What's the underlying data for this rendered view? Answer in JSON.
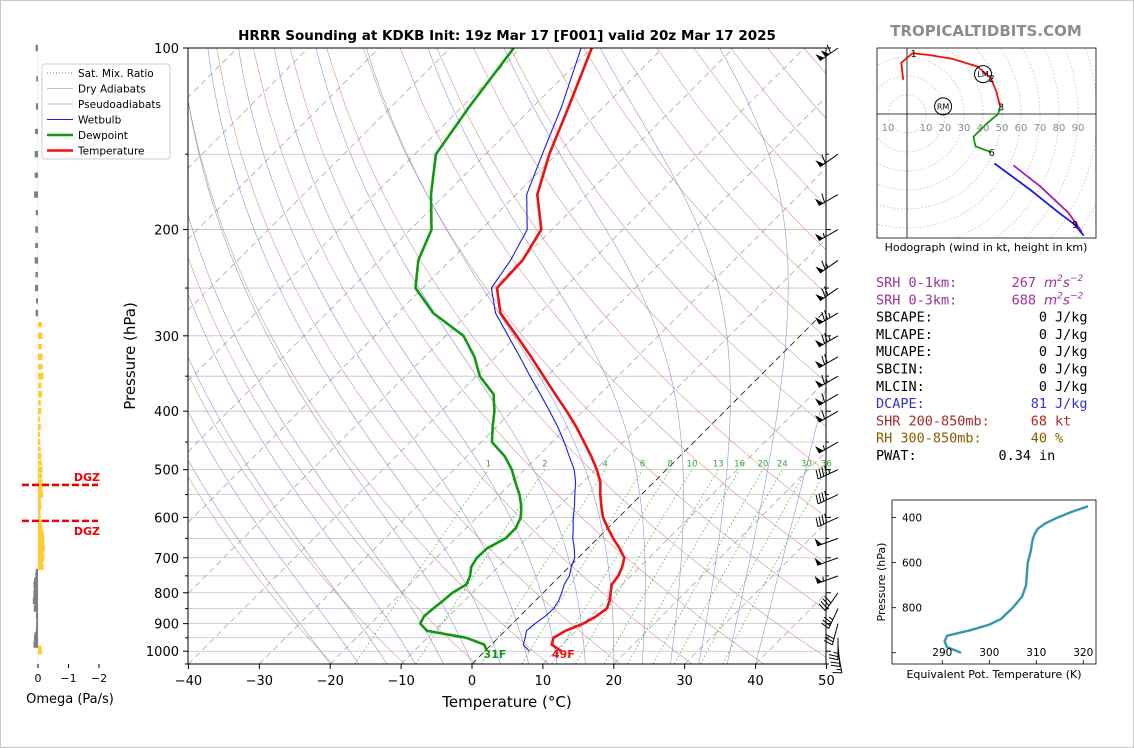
{
  "title": "HRRR Sounding at KDKB Init: 19z Mar 17 [F001] valid 20z Mar 17 2025",
  "brand": "TROPICALTIDBITS.COM",
  "colors": {
    "temperature": "#ee1111",
    "dewpoint": "#119911",
    "wetbulb": "#1a1ae6",
    "dry_adiabat": "#d08080",
    "moist_adiabat": "#8080d0",
    "mixing_ratio": "#33aa33",
    "srh": "#993399",
    "dcape": "#3333cc",
    "shr": "#a52a2a",
    "rh": "#8b5a00",
    "omega_up": "#ffcc33",
    "omega_down": "#808080",
    "dgz": "#ee0000",
    "theta_e": "#3399aa"
  },
  "chart_data": [
    {
      "type": "line",
      "name": "skewt",
      "xlabel": "Temperature (°C)",
      "ylabel": "Pressure (hPa)",
      "xlim": [
        -40,
        50
      ],
      "ylim": [
        1050,
        100
      ],
      "y_scale": "log",
      "skew": "45°",
      "x_ticks": [
        "−40",
        "−30",
        "−20",
        "−10",
        "0",
        "10",
        "20",
        "30",
        "40",
        "50"
      ],
      "y_ticks": [
        "100",
        "200",
        "300",
        "400",
        "500",
        "600",
        "700",
        "800",
        "900",
        "1000"
      ],
      "legend": {
        "placement": "top-left",
        "entries": [
          "Sat. Mix. Ratio",
          "Dry Adiabats",
          "Pseudoadiabats",
          "Wetbulb",
          "Dewpoint",
          "Temperature"
        ]
      },
      "series": [
        {
          "name": "Temperature",
          "points": [
            [
              1000,
              10.8
            ],
            [
              975,
              8.5
            ],
            [
              950,
              7.8
            ],
            [
              925,
              8.5
            ],
            [
              900,
              10.0
            ],
            [
              875,
              10.8
            ],
            [
              850,
              11.2
            ],
            [
              825,
              10.5
            ],
            [
              800,
              9.5
            ],
            [
              775,
              8.5
            ],
            [
              750,
              8.2
            ],
            [
              725,
              7.5
            ],
            [
              700,
              6.5
            ],
            [
              675,
              4.5
            ],
            [
              650,
              2.2
            ],
            [
              625,
              0.0
            ],
            [
              600,
              -2.2
            ],
            [
              575,
              -4.0
            ],
            [
              550,
              -5.8
            ],
            [
              525,
              -7.5
            ],
            [
              500,
              -9.8
            ],
            [
              475,
              -12.5
            ],
            [
              450,
              -15.5
            ],
            [
              425,
              -18.7
            ],
            [
              400,
              -22.3
            ],
            [
              375,
              -26.3
            ],
            [
              350,
              -30.5
            ],
            [
              325,
              -35.0
            ],
            [
              300,
              -40.0
            ],
            [
              275,
              -45.5
            ],
            [
              250,
              -49.5
            ],
            [
              225,
              -49.8
            ],
            [
              200,
              -51.5
            ],
            [
              175,
              -57.0
            ],
            [
              150,
              -61.0
            ],
            [
              125,
              -65.0
            ],
            [
              100,
              -70.0
            ]
          ]
        },
        {
          "name": "Dewpoint",
          "points": [
            [
              1000,
              0.3
            ],
            [
              975,
              -1.0
            ],
            [
              950,
              -4.5
            ],
            [
              925,
              -11.0
            ],
            [
              900,
              -13.0
            ],
            [
              875,
              -13.5
            ],
            [
              850,
              -13.3
            ],
            [
              825,
              -13.0
            ],
            [
              800,
              -12.8
            ],
            [
              775,
              -12.0
            ],
            [
              750,
              -12.7
            ],
            [
              725,
              -13.8
            ],
            [
              700,
              -14.3
            ],
            [
              675,
              -14.2
            ],
            [
              650,
              -13.0
            ],
            [
              625,
              -13.0
            ],
            [
              600,
              -13.8
            ],
            [
              575,
              -15.3
            ],
            [
              550,
              -17.2
            ],
            [
              525,
              -19.5
            ],
            [
              500,
              -21.8
            ],
            [
              475,
              -24.7
            ],
            [
              450,
              -28.5
            ],
            [
              425,
              -30.5
            ],
            [
              400,
              -32.5
            ],
            [
              375,
              -35.0
            ],
            [
              350,
              -39.5
            ],
            [
              325,
              -43.0
            ],
            [
              300,
              -47.5
            ],
            [
              275,
              -55.0
            ],
            [
              250,
              -61.0
            ],
            [
              225,
              -64.5
            ],
            [
              200,
              -67.0
            ],
            [
              175,
              -72.0
            ],
            [
              150,
              -77.0
            ],
            [
              125,
              -79.0
            ],
            [
              100,
              -81.0
            ]
          ]
        },
        {
          "name": "Wetbulb",
          "points": [
            [
              1000,
              6.3
            ],
            [
              975,
              4.5
            ],
            [
              950,
              3.8
            ],
            [
              925,
              3.0
            ],
            [
              900,
              3.2
            ],
            [
              875,
              3.6
            ],
            [
              850,
              3.7
            ],
            [
              825,
              3.3
            ],
            [
              800,
              2.6
            ],
            [
              775,
              1.8
            ],
            [
              750,
              1.3
            ],
            [
              725,
              0.3
            ],
            [
              700,
              -0.5
            ],
            [
              675,
              -1.9
            ],
            [
              650,
              -3.5
            ],
            [
              625,
              -4.9
            ],
            [
              600,
              -6.4
            ],
            [
              575,
              -7.8
            ],
            [
              550,
              -9.4
            ],
            [
              525,
              -11.0
            ],
            [
              500,
              -13.0
            ],
            [
              475,
              -15.6
            ],
            [
              450,
              -18.3
            ],
            [
              425,
              -21.3
            ],
            [
              400,
              -24.7
            ],
            [
              375,
              -28.4
            ],
            [
              350,
              -32.4
            ],
            [
              325,
              -36.6
            ],
            [
              300,
              -41.2
            ],
            [
              275,
              -46.2
            ],
            [
              250,
              -50.3
            ],
            [
              225,
              -51.5
            ],
            [
              200,
              -53.5
            ],
            [
              175,
              -58.5
            ],
            [
              150,
              -62.0
            ],
            [
              125,
              -66.0
            ],
            [
              100,
              -71.5
            ]
          ]
        }
      ],
      "annotations": {
        "surface_dewpoint": "31F",
        "surface_temperature": "49F"
      },
      "mixing_ratio_labels": [
        "1",
        "2",
        "4",
        "6",
        "8",
        "10",
        "13",
        "16",
        "20",
        "24",
        "30",
        "36"
      ]
    },
    {
      "type": "line",
      "name": "hodograph",
      "title": "Hodograph (wind in kt, height in km)",
      "rings": [
        "10",
        "20",
        "30",
        "40",
        "50",
        "60",
        "70",
        "80",
        "90"
      ],
      "x_tick_labels": [
        "10",
        "10",
        "20",
        "30",
        "40",
        "50",
        "60",
        "70",
        "80",
        "90"
      ],
      "storm_motion_labels": [
        "LM",
        "RM"
      ],
      "height_labels": [
        "1",
        "2",
        "3",
        "6",
        "9"
      ],
      "points": [
        {
          "u": -2,
          "v": 18,
          "seg": 0
        },
        {
          "u": -3,
          "v": 27,
          "seg": 0
        },
        {
          "u": 3,
          "v": 32,
          "seg": 0,
          "label": "1"
        },
        {
          "u": 12,
          "v": 31,
          "seg": 0
        },
        {
          "u": 24,
          "v": 29,
          "seg": 0
        },
        {
          "u": 37,
          "v": 25,
          "seg": 0
        },
        {
          "u": 44,
          "v": 19,
          "seg": 0,
          "label": "2"
        },
        {
          "u": 47,
          "v": 12,
          "seg": 0
        },
        {
          "u": 49,
          "v": 4,
          "seg": 0,
          "label": "3"
        },
        {
          "u": 48,
          "v": 0,
          "seg": 1
        },
        {
          "u": 42,
          "v": -5,
          "seg": 1
        },
        {
          "u": 35,
          "v": -12,
          "seg": 1
        },
        {
          "u": 36,
          "v": -17,
          "seg": 1
        },
        {
          "u": 44,
          "v": -20,
          "seg": 1,
          "label": "6"
        },
        {
          "u": 56,
          "v": -27,
          "seg": 2
        },
        {
          "u": 70,
          "v": -38,
          "seg": 2
        },
        {
          "u": 85,
          "v": -52,
          "seg": 2
        },
        {
          "u": 92,
          "v": -62,
          "seg": 2
        },
        {
          "u": 46,
          "v": -26,
          "seg": 3
        },
        {
          "u": 65,
          "v": -40,
          "seg": 3
        },
        {
          "u": 80,
          "v": -52,
          "seg": 3
        },
        {
          "u": 88,
          "v": -58,
          "seg": 3,
          "label": "9"
        },
        {
          "u": 93,
          "v": -64,
          "seg": 3
        }
      ],
      "storm_motion": {
        "LM": [
          40,
          21
        ],
        "RM": [
          19,
          4
        ]
      }
    },
    {
      "type": "bar",
      "name": "omega",
      "xlabel": "Omega (Pa/s)",
      "x_ticks": [
        "0",
        "−1",
        "−2"
      ],
      "pressures": [
        100,
        125,
        150,
        175,
        200,
        225,
        250,
        275,
        300,
        325,
        350,
        375,
        400,
        425,
        450,
        475,
        500,
        525,
        550,
        575,
        600,
        625,
        650,
        675,
        700,
        725,
        750,
        775,
        800,
        825,
        850,
        875,
        900,
        925,
        950,
        975,
        1000
      ],
      "values": [
        -0.03,
        -0.02,
        -0.06,
        -0.08,
        -0.04,
        -0.06,
        -0.05,
        -0.03,
        0.1,
        0.1,
        0.13,
        0.09,
        0.06,
        0.04,
        0.03,
        0.06,
        0.1,
        0.1,
        0.12,
        0.06,
        0.04,
        0.1,
        0.16,
        0.18,
        0.16,
        0.14,
        -0.04,
        -0.1,
        -0.1,
        -0.12,
        -0.09,
        -0.02,
        -0.01,
        -0.02,
        -0.08,
        -0.1,
        0.08
      ],
      "dgz_levels": [
        530,
        608
      ],
      "dgz_label": "DGZ"
    },
    {
      "type": "line",
      "name": "theta_e",
      "xlabel": "Equivalent Pot. Temperature (K)",
      "ylabel": "Pressure (hPa)",
      "x_ticks": [
        "290",
        "300",
        "310",
        "320"
      ],
      "y_ticks": [
        "400",
        "600",
        "800"
      ],
      "points": [
        [
          1000,
          294
        ],
        [
          975,
          291
        ],
        [
          950,
          290.5
        ],
        [
          925,
          291
        ],
        [
          900,
          296
        ],
        [
          875,
          300
        ],
        [
          850,
          302.5
        ],
        [
          800,
          305
        ],
        [
          750,
          307
        ],
        [
          700,
          307.8
        ],
        [
          650,
          308
        ],
        [
          600,
          308.2
        ],
        [
          550,
          308.8
        ],
        [
          500,
          309.2
        ],
        [
          475,
          309.6
        ],
        [
          450,
          310.3
        ],
        [
          425,
          312
        ],
        [
          400,
          314.5
        ],
        [
          375,
          317.5
        ],
        [
          350,
          321
        ]
      ]
    }
  ],
  "indices": [
    {
      "label": "SRH 0-1km:",
      "value": "267",
      "unit": "m2s-2",
      "color": "#993399",
      "sup": true
    },
    {
      "label": "SRH 0-3km:",
      "value": "688",
      "unit": "m2s-2",
      "color": "#993399",
      "sup": true
    },
    {
      "label": "SBCAPE:",
      "value": "0",
      "unit": "J/kg",
      "color": "#000000"
    },
    {
      "label": "MLCAPE:",
      "value": "0",
      "unit": "J/kg",
      "color": "#000000"
    },
    {
      "label": "MUCAPE:",
      "value": "0",
      "unit": "J/kg",
      "color": "#000000"
    },
    {
      "label": "SBCIN:",
      "value": "0",
      "unit": "J/kg",
      "color": "#000000"
    },
    {
      "label": "MLCIN:",
      "value": "0",
      "unit": "J/kg",
      "color": "#000000"
    },
    {
      "label": "DCAPE:",
      "value": "81",
      "unit": "J/kg",
      "color": "#3333cc"
    },
    {
      "label": "SHR 200-850mb:",
      "value": "68",
      "unit": "kt",
      "color": "#a52a2a"
    },
    {
      "label": "RH 300-850mb:",
      "value": "40",
      "unit": "%",
      "color": "#8b5a00"
    },
    {
      "label": "PWAT:",
      "value": "0.34",
      "unit": "in",
      "color": "#000000"
    }
  ],
  "wind_barbs": [
    {
      "p": 100,
      "dir": 235,
      "spd": 110
    },
    {
      "p": 150,
      "dir": 235,
      "spd": 60
    },
    {
      "p": 175,
      "dir": 240,
      "spd": 60
    },
    {
      "p": 200,
      "dir": 240,
      "spd": 55
    },
    {
      "p": 225,
      "dir": 235,
      "spd": 65
    },
    {
      "p": 250,
      "dir": 235,
      "spd": 70
    },
    {
      "p": 275,
      "dir": 240,
      "spd": 75
    },
    {
      "p": 300,
      "dir": 240,
      "spd": 75
    },
    {
      "p": 325,
      "dir": 240,
      "spd": 70
    },
    {
      "p": 350,
      "dir": 240,
      "spd": 65
    },
    {
      "p": 375,
      "dir": 240,
      "spd": 60
    },
    {
      "p": 400,
      "dir": 240,
      "spd": 60
    },
    {
      "p": 450,
      "dir": 240,
      "spd": 55
    },
    {
      "p": 500,
      "dir": 245,
      "spd": 45
    },
    {
      "p": 550,
      "dir": 245,
      "spd": 40
    },
    {
      "p": 600,
      "dir": 245,
      "spd": 40
    },
    {
      "p": 650,
      "dir": 250,
      "spd": 50
    },
    {
      "p": 700,
      "dir": 250,
      "spd": 50
    },
    {
      "p": 750,
      "dir": 250,
      "spd": 55
    },
    {
      "p": 800,
      "dir": 215,
      "spd": 40
    },
    {
      "p": 850,
      "dir": 205,
      "spd": 35
    },
    {
      "p": 900,
      "dir": 195,
      "spd": 30
    },
    {
      "p": 950,
      "dir": 180,
      "spd": 25
    },
    {
      "p": 975,
      "dir": 175,
      "spd": 20
    },
    {
      "p": 1000,
      "dir": 170,
      "spd": 15
    }
  ]
}
